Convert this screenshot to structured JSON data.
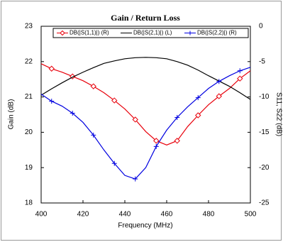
{
  "chart_data": {
    "type": "line",
    "title": "Gain / Return Loss",
    "xlabel": "Frequency (MHz)",
    "ylabel": "Gain (dB)",
    "y2label": "S11, S22 (dB)",
    "x": [
      400,
      405,
      410,
      415,
      420,
      425,
      430,
      435,
      440,
      445,
      450,
      455,
      460,
      465,
      470,
      475,
      480,
      485,
      490,
      495,
      500
    ],
    "series": [
      {
        "name": "DB(|S(1,1)|) (R)",
        "color": "#e8000b",
        "axis": "y2",
        "marker": "diamond",
        "values": [
          -5.3,
          -6.0,
          -6.5,
          -7.1,
          -7.7,
          -8.5,
          -9.4,
          -10.5,
          -11.7,
          -13.2,
          -14.9,
          -16.2,
          -16.8,
          -16.2,
          -14.2,
          -12.6,
          -11.1,
          -9.9,
          -8.8,
          -7.4,
          -6.3
        ]
      },
      {
        "name": "DB(|S(2,1)|) (L)",
        "color": "#000000",
        "axis": "y",
        "marker": "none",
        "values": [
          21.05,
          21.23,
          21.4,
          21.56,
          21.7,
          21.83,
          21.95,
          22.02,
          22.08,
          22.11,
          22.12,
          22.11,
          22.08,
          22.0,
          21.9,
          21.76,
          21.6,
          21.45,
          21.3,
          21.12,
          20.93
        ]
      },
      {
        "name": "DB(|S(2,2)|) (R)",
        "color": "#0000e0",
        "axis": "y2",
        "marker": "plus",
        "values": [
          -9.6,
          -10.6,
          -11.3,
          -12.3,
          -13.6,
          -15.4,
          -17.5,
          -19.4,
          -21.1,
          -21.6,
          -20.0,
          -17.0,
          -14.7,
          -12.9,
          -11.4,
          -10.1,
          -8.8,
          -7.8,
          -7.0,
          -6.3,
          -5.8
        ]
      }
    ],
    "xlim": [
      400,
      500
    ],
    "xticks": [
      400,
      420,
      440,
      460,
      480,
      500
    ],
    "ylim": [
      18,
      23
    ],
    "yticks": [
      18,
      19,
      20,
      21,
      22,
      23
    ],
    "y2lim": [
      -25,
      0
    ],
    "y2ticks": [
      -25,
      -20,
      -15,
      -10,
      -5,
      0
    ],
    "grid": false,
    "legend": "top"
  }
}
